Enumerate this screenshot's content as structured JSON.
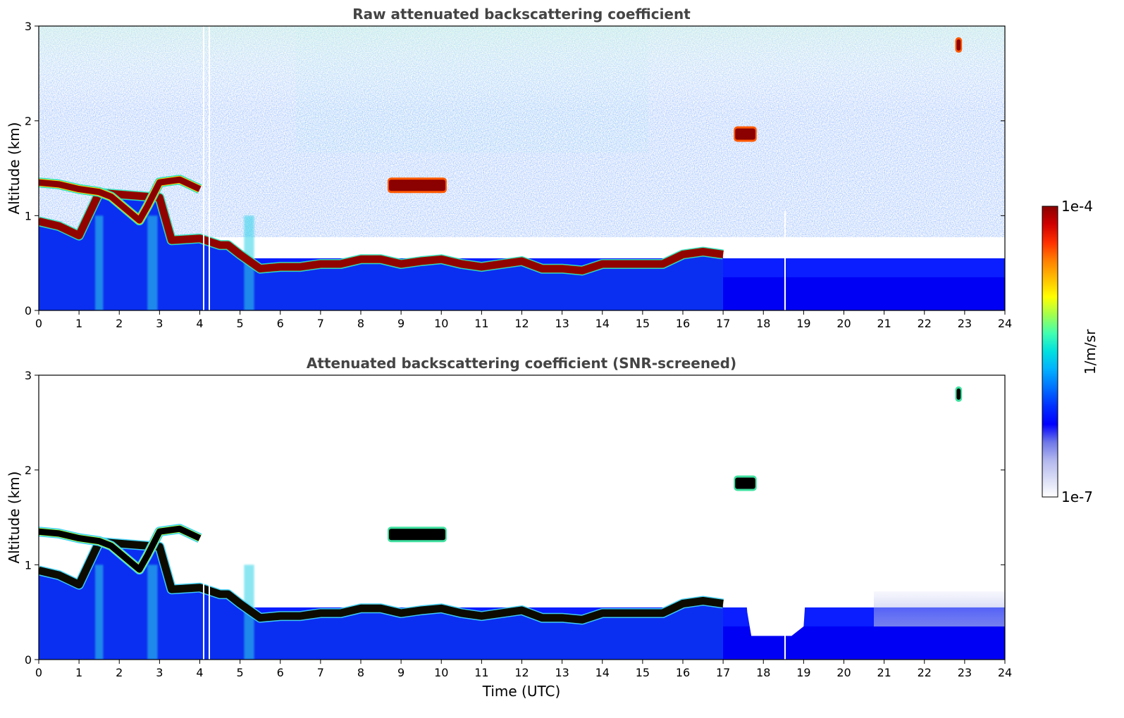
{
  "chart_data": [
    {
      "type": "heatmap",
      "title": "Raw attenuated backscattering coefficient",
      "xlabel": "",
      "ylabel": "Altitude (km)",
      "xlim": [
        0,
        24
      ],
      "ylim": [
        0,
        3
      ],
      "xticks": [
        "0",
        "1",
        "2",
        "3",
        "4",
        "5",
        "6",
        "7",
        "8",
        "9",
        "10",
        "11",
        "12",
        "13",
        "14",
        "15",
        "16",
        "17",
        "18",
        "19",
        "20",
        "21",
        "22",
        "23",
        "24"
      ],
      "yticks": [
        "0",
        "1",
        "2",
        "3"
      ],
      "layer_top_km": [
        1.0,
        0.95,
        0.85,
        1.3,
        1.25,
        0.8,
        0.82,
        0.75,
        0.75,
        0.65,
        0.5,
        0.52,
        0.52,
        0.55,
        0.55,
        0.6,
        0.6,
        0.55,
        0.58,
        0.6,
        0.55,
        0.52,
        0.55,
        0.58,
        0.5,
        0.5,
        0.48,
        0.55,
        0.55,
        0.55,
        0.55,
        0.65,
        0.68,
        0.65
      ],
      "layer_x_h": [
        0,
        0.5,
        1.0,
        1.5,
        3.0,
        3.3,
        4.0,
        4.5,
        4.7,
        5.0,
        5.5,
        6.0,
        6.5,
        7.0,
        7.5,
        8.0,
        8.5,
        9.0,
        9.5,
        10.0,
        10.5,
        11.0,
        11.5,
        12.0,
        12.5,
        13.0,
        13.5,
        14.0,
        14.5,
        15.0,
        15.5,
        16.0,
        16.5,
        17.0
      ],
      "elevated_layers": [
        {
          "x0": 8.7,
          "x1": 10.1,
          "alt_km": 1.32
        },
        {
          "x0": 17.3,
          "x1": 17.8,
          "alt_km": 1.86
        },
        {
          "x0": 22.8,
          "x1": 22.9,
          "alt_km": 2.8
        }
      ]
    },
    {
      "type": "heatmap",
      "title": "Attenuated backscattering coefficient (SNR-screened)",
      "xlabel": "Time (UTC)",
      "ylabel": "Altitude (km)",
      "xlim": [
        0,
        24
      ],
      "ylim": [
        0,
        3
      ],
      "xticks": [
        "0",
        "1",
        "2",
        "3",
        "4",
        "5",
        "6",
        "7",
        "8",
        "9",
        "10",
        "11",
        "12",
        "13",
        "14",
        "15",
        "16",
        "17",
        "18",
        "19",
        "20",
        "21",
        "22",
        "23",
        "24"
      ],
      "yticks": [
        "0",
        "1",
        "2",
        "3"
      ],
      "screened_gap": {
        "x0": 17.5,
        "x1": 19.1,
        "alt_km": 0.25
      }
    }
  ],
  "colorbar": {
    "max_label": "1e-4",
    "min_label": "1e-7",
    "unit_label": "1/m/sr",
    "colors": [
      "#ffffff",
      "#d9dcf5",
      "#b3b8ee",
      "#6f78e8",
      "#0000ff",
      "#0030ff",
      "#0070ff",
      "#00b0ff",
      "#00e0e0",
      "#40ffb0",
      "#a0ff50",
      "#ffff00",
      "#ffc000",
      "#ff8000",
      "#ff3000",
      "#d00000",
      "#8b0000"
    ]
  }
}
